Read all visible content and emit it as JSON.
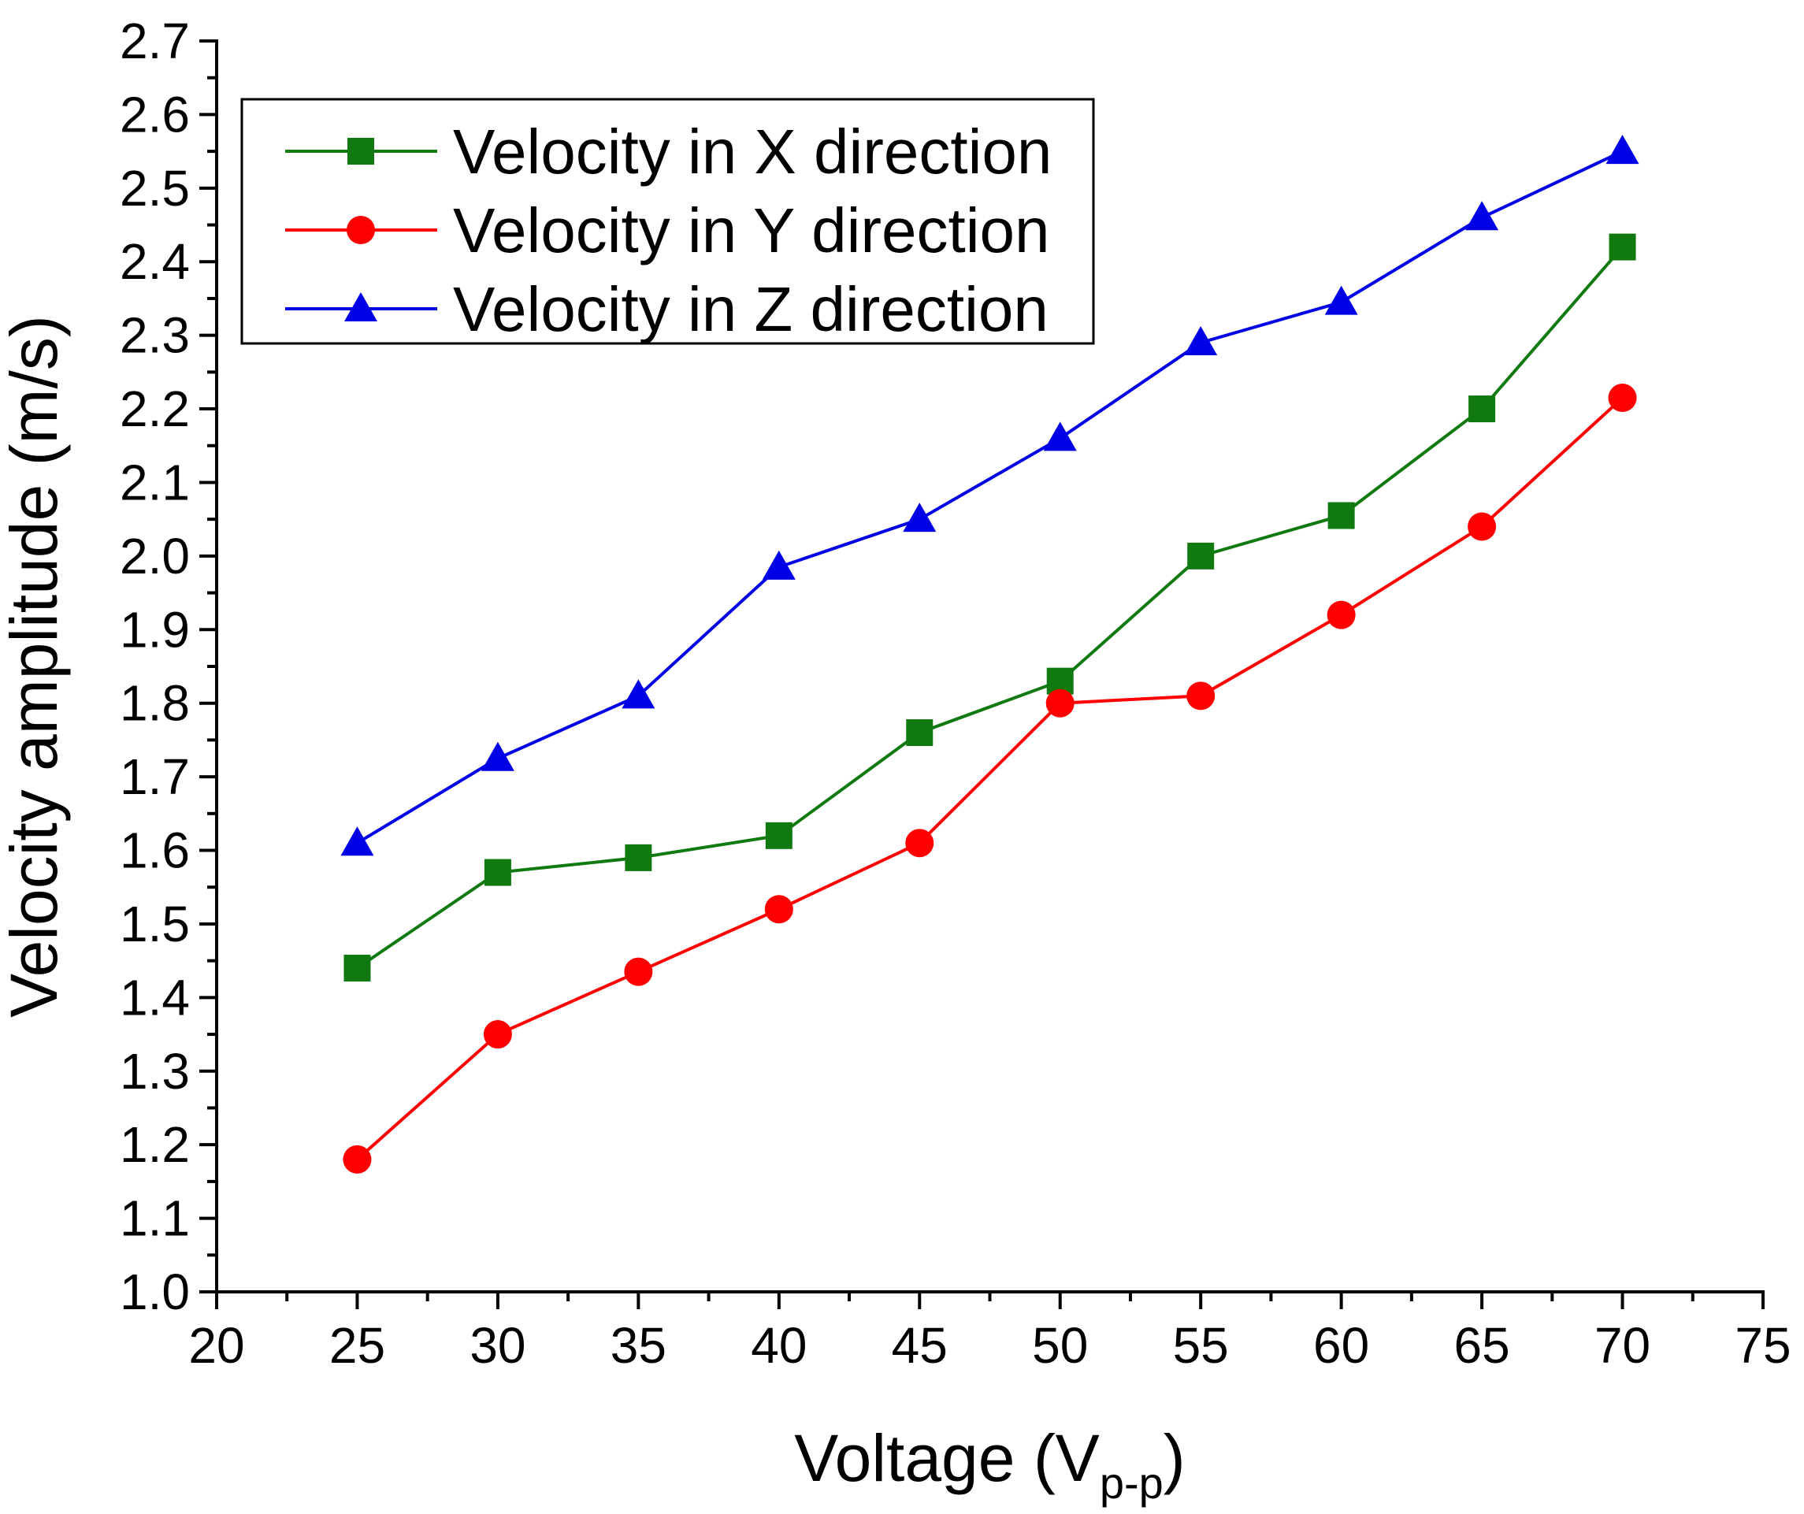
{
  "chart_data": {
    "type": "line",
    "title": "",
    "xlabel": "Voltage (V",
    "xlabel_sub": "p-p",
    "xlabel_close": ")",
    "ylabel": "Velocity amplitude (m/s)",
    "xlim": [
      20,
      75
    ],
    "ylim": [
      1.0,
      2.7
    ],
    "xticks": [
      20,
      25,
      30,
      35,
      40,
      45,
      50,
      55,
      60,
      65,
      70,
      75
    ],
    "yticks": [
      1.0,
      1.1,
      1.2,
      1.3,
      1.4,
      1.5,
      1.6,
      1.7,
      1.8,
      1.9,
      2.0,
      2.1,
      2.2,
      2.3,
      2.4,
      2.5,
      2.6,
      2.7
    ],
    "xtick_labels": [
      "20",
      "25",
      "30",
      "35",
      "40",
      "45",
      "50",
      "55",
      "60",
      "65",
      "70",
      "75"
    ],
    "ytick_labels": [
      "1.0",
      "1.1",
      "1.2",
      "1.3",
      "1.4",
      "1.5",
      "1.6",
      "1.7",
      "1.8",
      "1.9",
      "2.0",
      "2.1",
      "2.2",
      "2.3",
      "2.4",
      "2.5",
      "2.6",
      "2.7"
    ],
    "grid": false,
    "legend_position": "top-left",
    "x": [
      25,
      30,
      35,
      40,
      45,
      50,
      55,
      60,
      65,
      70
    ],
    "series": [
      {
        "name": "Velocity in X direction",
        "color": "#107a10",
        "marker": "square",
        "values": [
          1.44,
          1.57,
          1.59,
          1.62,
          1.76,
          1.83,
          2.0,
          2.055,
          2.2,
          2.42
        ]
      },
      {
        "name": "Velocity in Y direction",
        "color": "#ff0000",
        "marker": "circle",
        "values": [
          1.18,
          1.35,
          1.435,
          1.52,
          1.61,
          1.8,
          1.81,
          1.92,
          2.04,
          2.215
        ]
      },
      {
        "name": "Velocity in Z direction",
        "color": "#0000e6",
        "marker": "triangle",
        "values": [
          1.61,
          1.725,
          1.81,
          1.985,
          2.05,
          2.16,
          2.29,
          2.345,
          2.46,
          2.55
        ]
      }
    ]
  }
}
